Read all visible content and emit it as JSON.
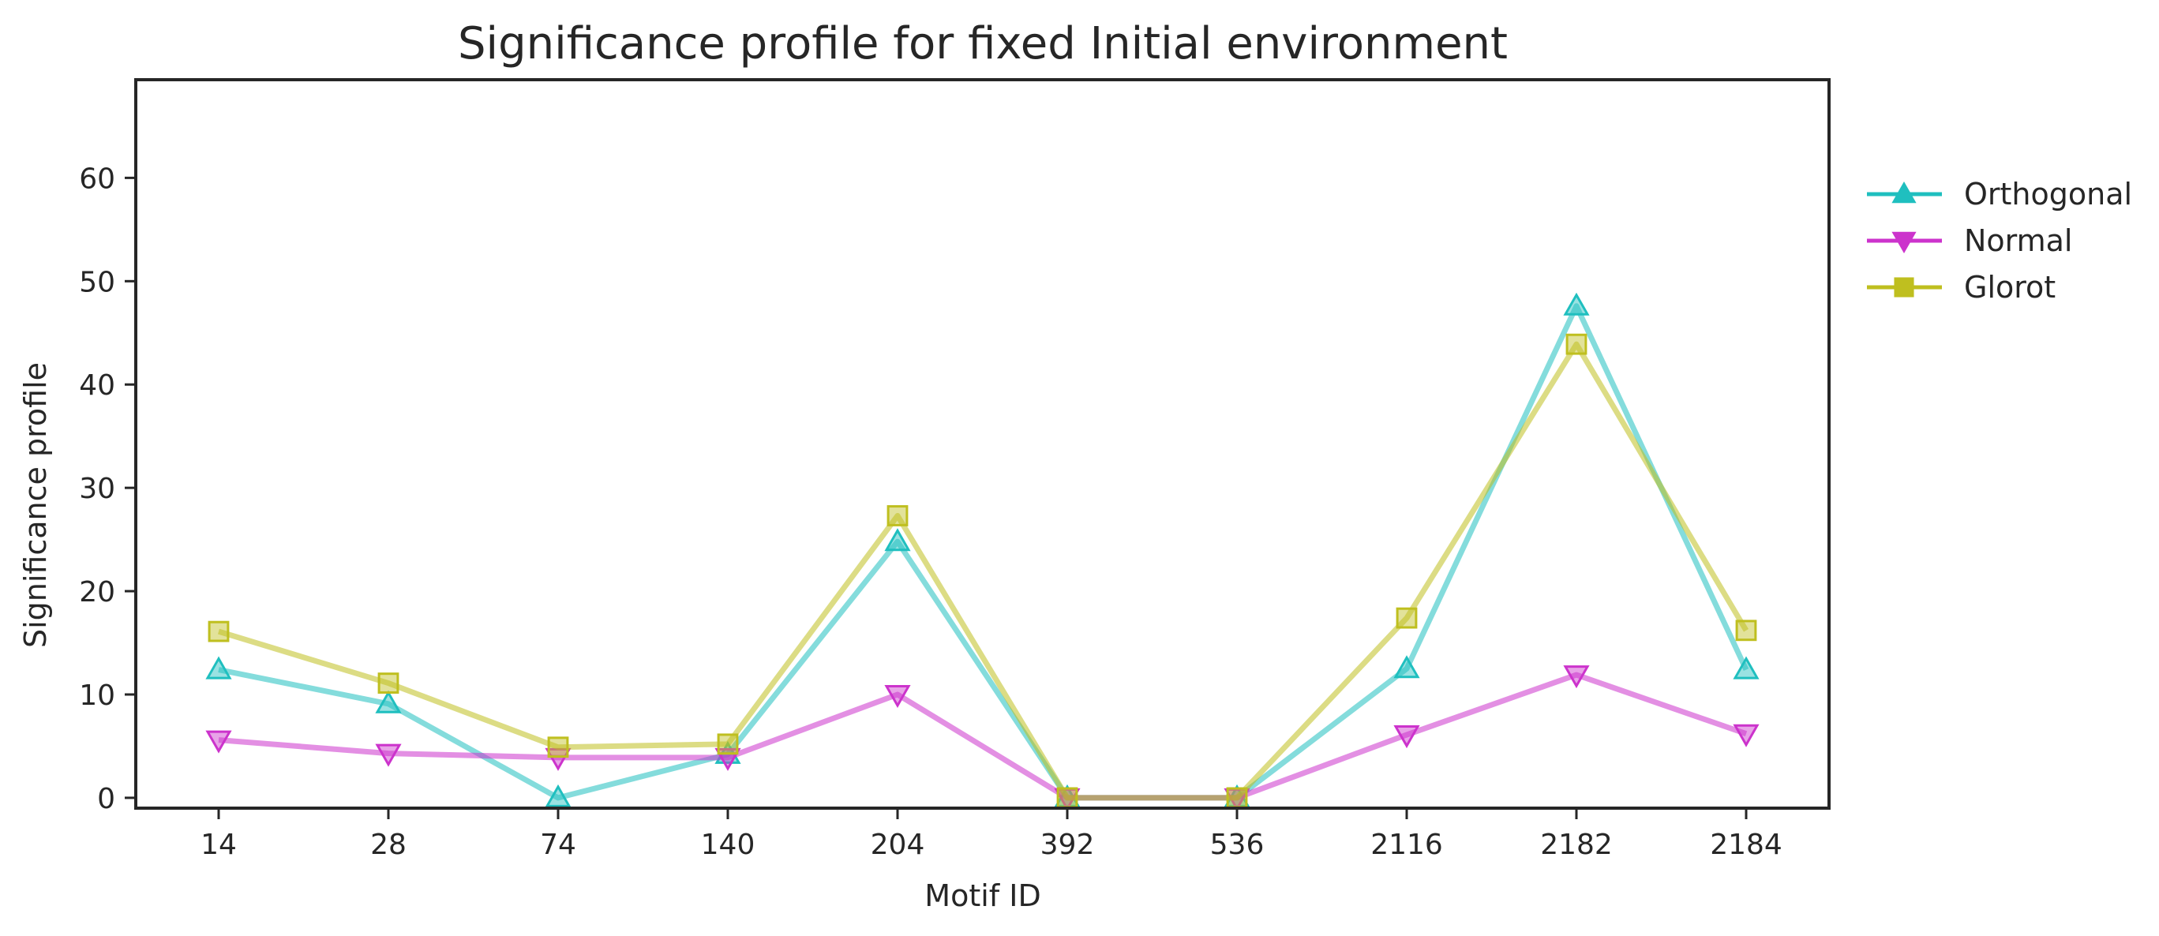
{
  "chart_data": {
    "type": "line",
    "title": "Significance profile for fixed Initial environment",
    "xlabel": "Motif ID",
    "ylabel": "Significance profile",
    "categories": [
      "14",
      "28",
      "74",
      "140",
      "204",
      "392",
      "536",
      "2116",
      "2182",
      "2184"
    ],
    "yticks": [
      0,
      10,
      20,
      30,
      40,
      50,
      60
    ],
    "ylim": [
      -1,
      69.5
    ],
    "grid": false,
    "legend_position": "outside-right",
    "series": [
      {
        "name": "Orthogonal",
        "color": "#1fbfbf",
        "marker": "triangle-up",
        "values": [
          12.4,
          9.1,
          0.0,
          4.2,
          24.8,
          0.0,
          0.0,
          12.5,
          47.6,
          12.4
        ]
      },
      {
        "name": "Normal",
        "color": "#cc33cc",
        "marker": "triangle-down",
        "values": [
          5.6,
          4.3,
          3.9,
          3.9,
          10.0,
          0.0,
          0.0,
          6.1,
          11.9,
          6.2
        ]
      },
      {
        "name": "Glorot",
        "color": "#bfbf1f",
        "marker": "square",
        "values": [
          16.1,
          11.1,
          4.9,
          5.2,
          27.3,
          0.0,
          0.0,
          17.4,
          43.9,
          16.2
        ]
      }
    ]
  }
}
